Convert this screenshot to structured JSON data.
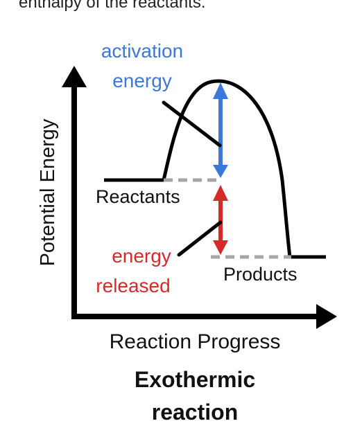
{
  "intro_line": "enthalpy of the reactants.",
  "diagram": {
    "y_axis_label": "Potential Energy",
    "x_axis_label": "Reaction Progress",
    "activation_label_line1": "activation",
    "activation_label_line2": "energy",
    "reactants_label": "Reactants",
    "products_label": "Products",
    "released_label_line1": "energy",
    "released_label_line2": "released",
    "caption_line1": "Exothermic",
    "caption_line2": "reaction",
    "colors": {
      "axis": "#000000",
      "curve": "#000000",
      "activation": "#3b78d8",
      "released": "#d42a2a",
      "dashed_level": "#a6a6a6",
      "text": "#111111"
    }
  }
}
